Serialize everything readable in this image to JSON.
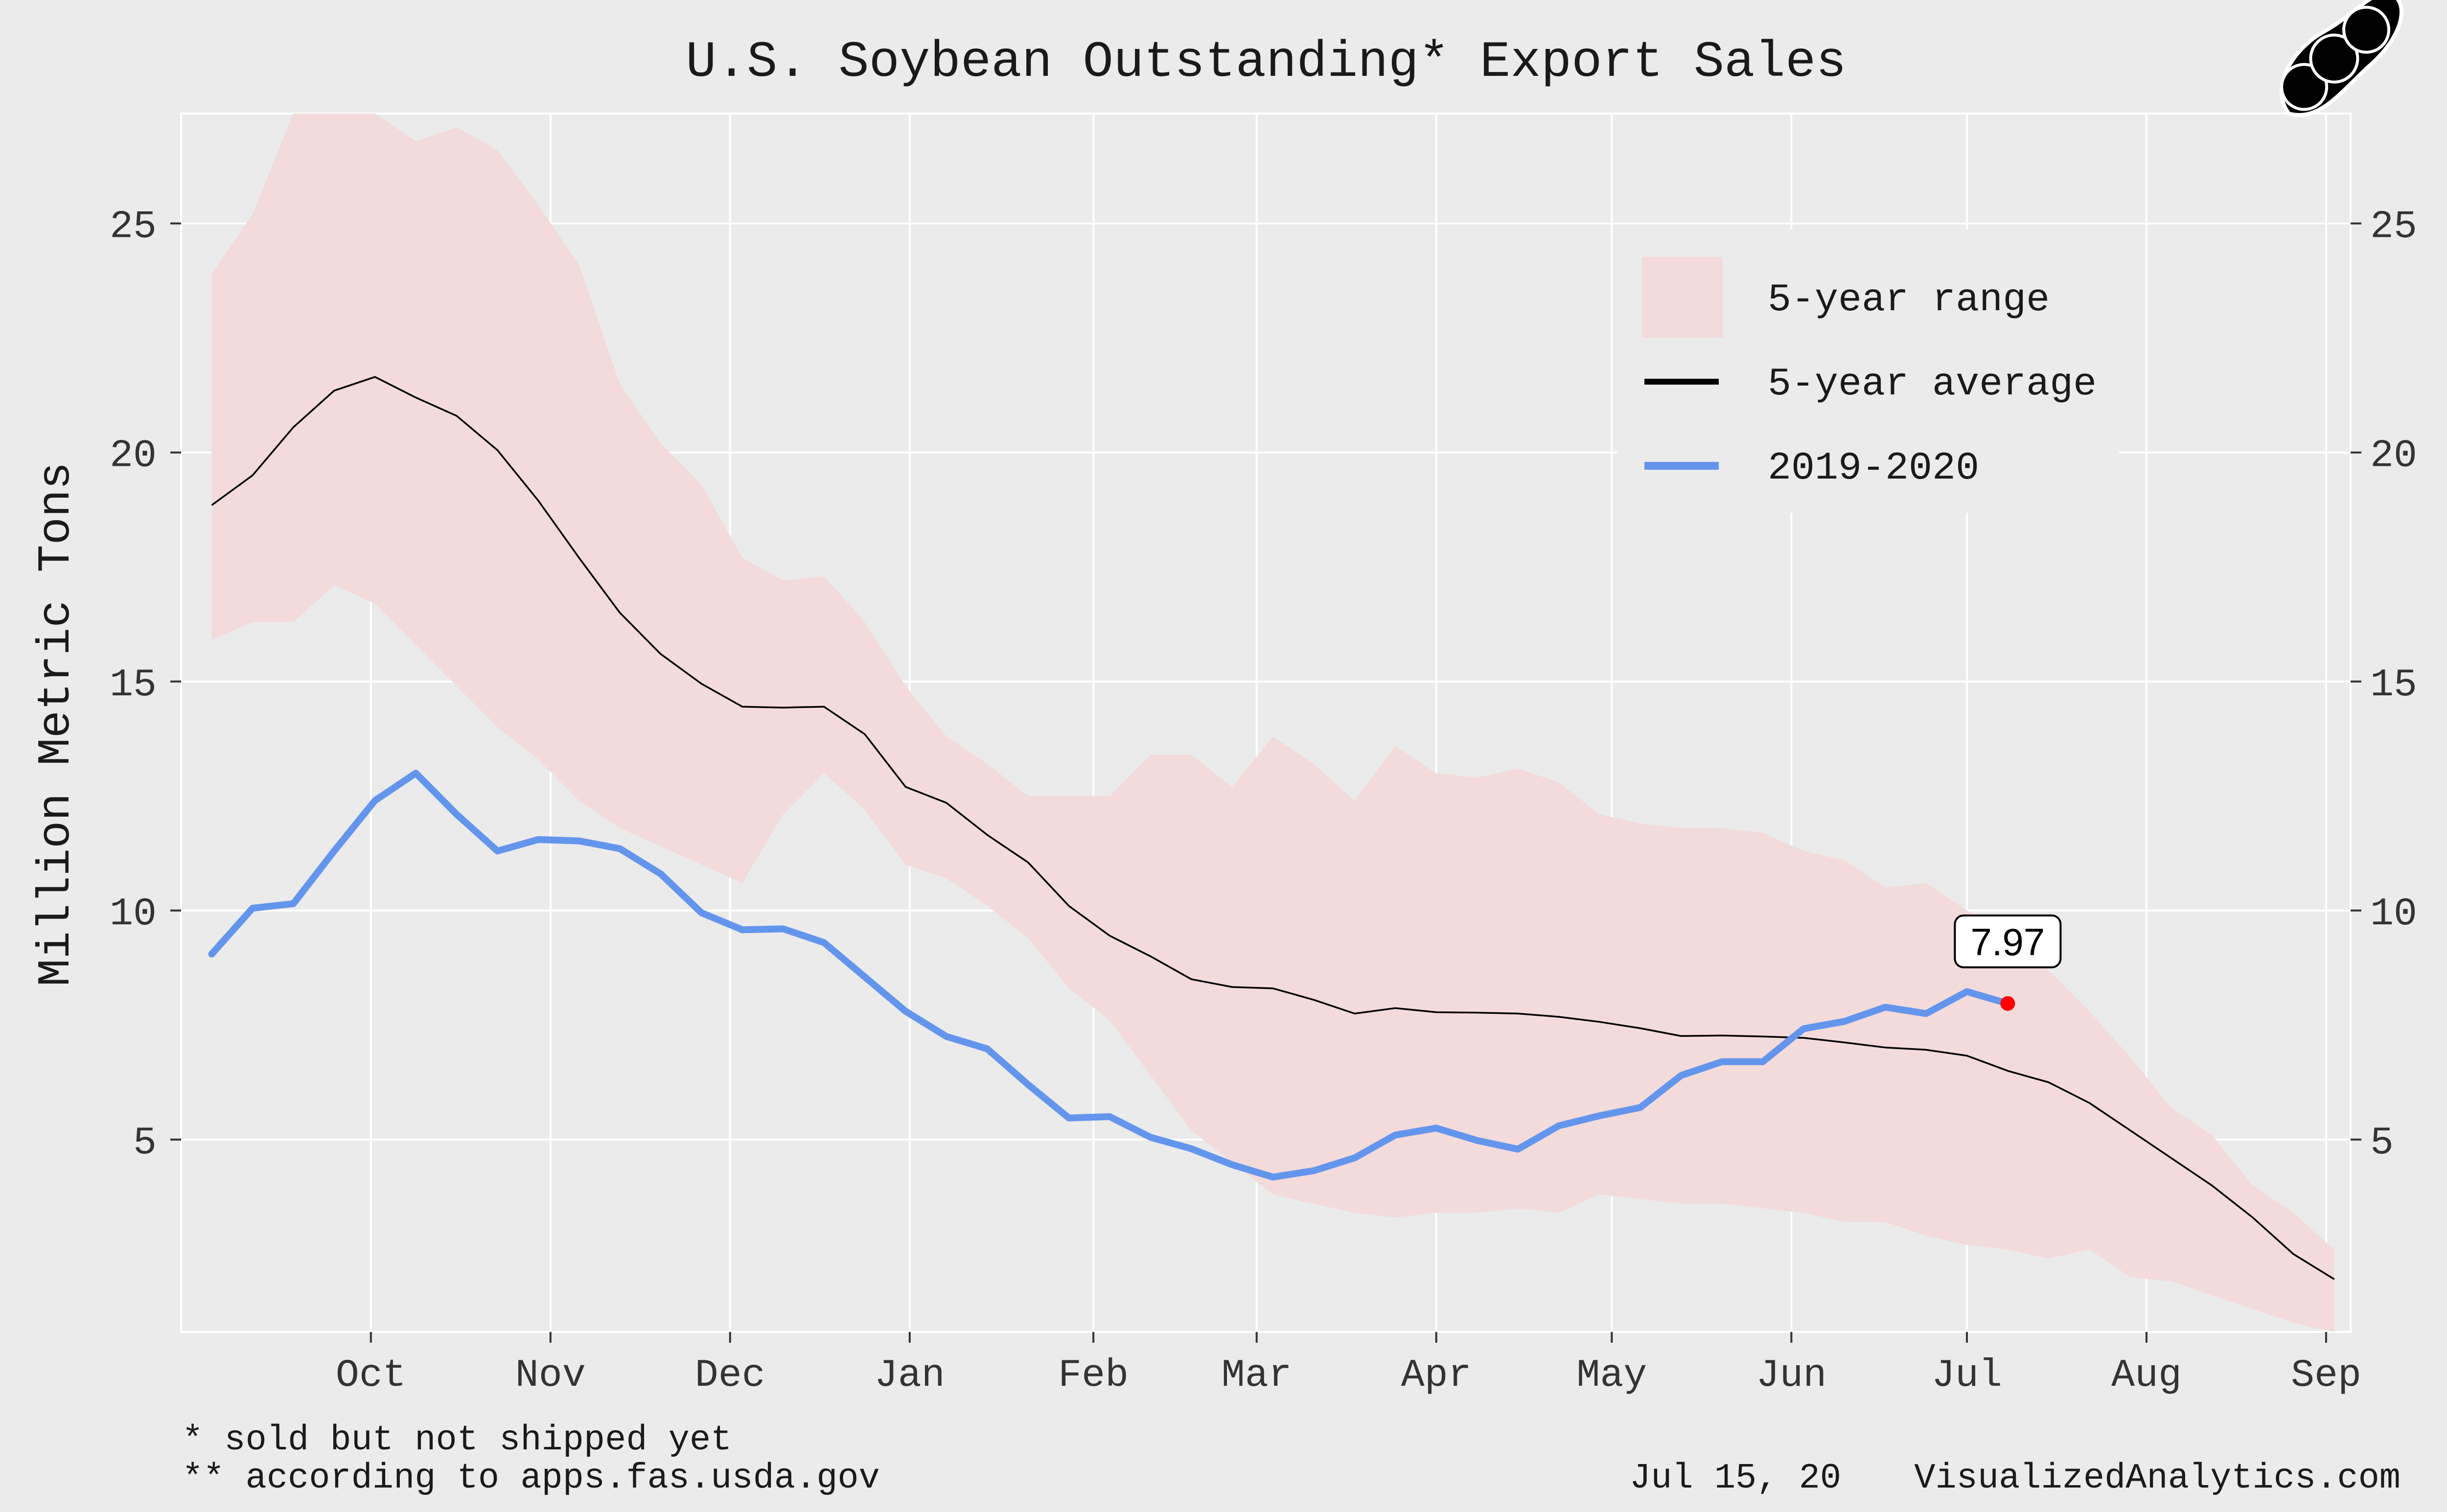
{
  "chart_data": {
    "type": "line",
    "title": "U.S. Soybean Outstanding* Export Sales",
    "ylabel": "Million Metric Tons",
    "xlabel": "",
    "x_unit": "weeks since Sep 1 (marketing year)",
    "xlim": [
      -0.75,
      52.4
    ],
    "ylim": [
      0.8,
      27.4
    ],
    "month_ticks": [
      {
        "label": "Oct",
        "week": 3.9
      },
      {
        "label": "Nov",
        "week": 8.3
      },
      {
        "label": "Dec",
        "week": 12.7
      },
      {
        "label": "Jan",
        "week": 17.1
      },
      {
        "label": "Feb",
        "week": 21.6
      },
      {
        "label": "Mar",
        "week": 25.6
      },
      {
        "label": "Apr",
        "week": 30.0
      },
      {
        "label": "May",
        "week": 34.3
      },
      {
        "label": "Jun",
        "week": 38.7
      },
      {
        "label": "Jul",
        "week": 43.0
      },
      {
        "label": "Aug",
        "week": 47.4
      },
      {
        "label": "Sep",
        "week": 51.8
      }
    ],
    "y_ticks": [
      5,
      10,
      15,
      20,
      25
    ],
    "range_upper": [
      23.9,
      25.2,
      27.4,
      27.4,
      27.4,
      26.8,
      27.1,
      26.6,
      25.4,
      24.1,
      21.5,
      20.2,
      19.3,
      17.7,
      17.2,
      17.3,
      16.3,
      14.9,
      13.8,
      13.2,
      12.5,
      12.5,
      12.5,
      13.4,
      13.4,
      12.7,
      13.8,
      13.2,
      12.4,
      13.6,
      13.0,
      12.9,
      13.1,
      12.8,
      12.1,
      11.9,
      11.8,
      11.8,
      11.7,
      11.3,
      11.1,
      10.5,
      10.6,
      10.0,
      9.5,
      8.7,
      7.8,
      6.8,
      5.7,
      5.1,
      4.0,
      3.4,
      2.6
    ],
    "range_lower": [
      15.9,
      16.3,
      16.3,
      17.1,
      16.7,
      15.8,
      14.9,
      14.0,
      13.3,
      12.4,
      11.8,
      11.4,
      11.0,
      10.6,
      12.1,
      13.0,
      12.2,
      11.0,
      10.7,
      10.1,
      9.4,
      8.3,
      7.6,
      6.4,
      5.2,
      4.5,
      3.8,
      3.6,
      3.4,
      3.3,
      3.4,
      3.4,
      3.5,
      3.4,
      3.8,
      3.7,
      3.6,
      3.6,
      3.5,
      3.4,
      3.2,
      3.2,
      2.9,
      2.7,
      2.6,
      2.4,
      2.6,
      2.0,
      1.9,
      1.6,
      1.3,
      1.0,
      0.8
    ],
    "average": [
      18.85,
      19.5,
      20.55,
      21.35,
      21.65,
      21.2,
      20.8,
      20.05,
      18.95,
      17.7,
      16.5,
      15.6,
      14.95,
      14.45,
      14.43,
      14.45,
      13.85,
      12.7,
      12.35,
      11.65,
      11.05,
      10.1,
      9.45,
      9.0,
      8.5,
      8.33,
      8.3,
      8.05,
      7.75,
      7.87,
      7.78,
      7.77,
      7.75,
      7.68,
      7.57,
      7.43,
      7.26,
      7.27,
      7.25,
      7.22,
      7.12,
      7.01,
      6.96,
      6.83,
      6.5,
      6.25,
      5.8,
      5.2,
      4.6,
      4.0,
      3.3,
      2.5,
      1.95
    ],
    "series": [
      {
        "name": "2019-2020",
        "color": "#6495ed",
        "values": [
          9.05,
          10.05,
          10.15,
          11.3,
          12.4,
          13.0,
          12.1,
          11.3,
          11.55,
          11.52,
          11.35,
          10.8,
          9.95,
          9.58,
          9.6,
          9.3,
          8.55,
          7.8,
          7.25,
          6.98,
          6.2,
          5.47,
          5.5,
          5.05,
          4.8,
          4.45,
          4.18,
          4.32,
          4.6,
          5.1,
          5.25,
          4.98,
          4.79,
          5.3,
          5.52,
          5.7,
          6.4,
          6.7,
          6.7,
          7.42,
          7.58,
          7.89,
          7.75,
          8.23,
          7.97
        ]
      }
    ],
    "last_point": {
      "week": 44,
      "value": 7.97,
      "label": "7.97",
      "color": "#ff0000"
    },
    "legend": {
      "position": "top-right",
      "items": [
        {
          "key": "range",
          "label": "5-year range",
          "color": "#f3dbdb"
        },
        {
          "key": "average",
          "label": "5-year average",
          "color": "#000000"
        },
        {
          "key": "current",
          "label": "2019-2020",
          "color": "#6495ed"
        }
      ]
    },
    "grid": true,
    "secondary_y_axis": true
  },
  "footnotes": {
    "line1": "* sold but not shipped yet",
    "line2": "** according to apps.fas.usda.gov"
  },
  "credit": {
    "date": "Jul 15, 20",
    "site": "VisualizedAnalytics.com"
  },
  "colors": {
    "background": "#ebebeb",
    "grid": "#ffffff",
    "band": "#f3dbdb",
    "average": "#000000",
    "current": "#6495ed",
    "marker": "#ff0000"
  }
}
